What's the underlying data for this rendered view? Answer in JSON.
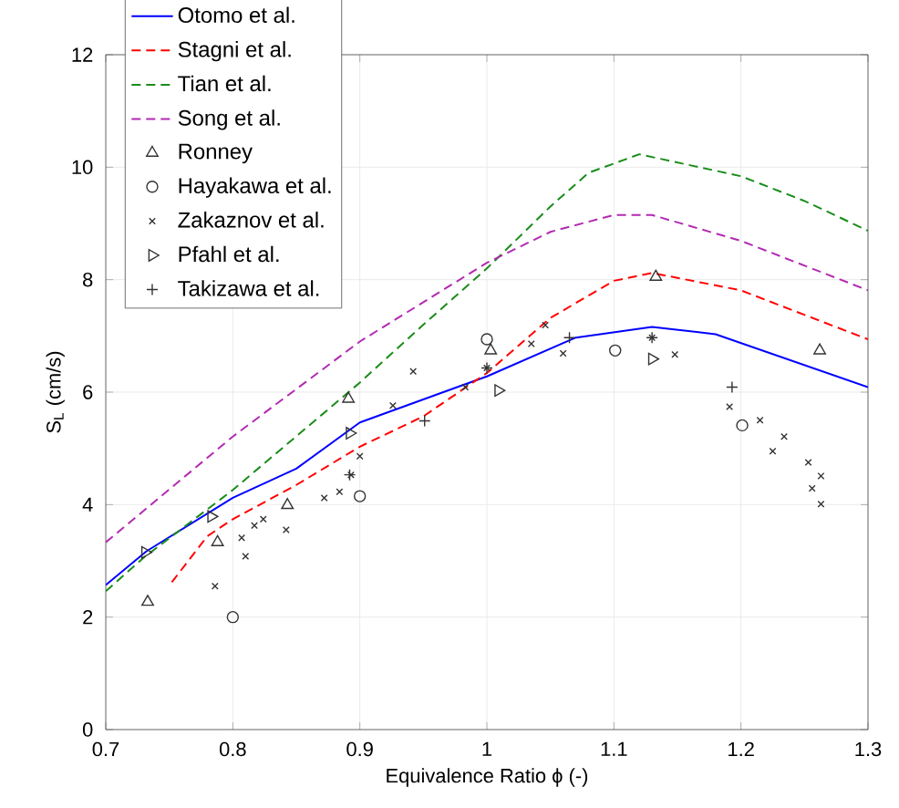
{
  "chart_data": {
    "type": "line",
    "xlabel": "Equivalence Ratio ϕ (-)",
    "ylabel": "S$_{L}$ (cm/s)",
    "xlim": [
      0.7,
      1.3
    ],
    "ylim": [
      0,
      12
    ],
    "xticks": [
      0.7,
      0.8,
      0.9,
      1,
      1.1,
      1.2,
      1.3
    ],
    "yticks": [
      0,
      2,
      4,
      6,
      8,
      10,
      12
    ],
    "grid": true,
    "legend": "top left",
    "series": [
      {
        "name": "Otomo et al.",
        "line_style": "solid",
        "color": "#0000ff",
        "x": [
          0.7,
          0.732,
          0.8,
          0.85,
          0.9,
          1.0,
          1.07,
          1.13,
          1.18,
          1.3
        ],
        "values": [
          2.57,
          3.17,
          4.12,
          4.64,
          5.46,
          6.28,
          6.97,
          7.16,
          7.03,
          6.09
        ]
      },
      {
        "name": "Stagni et al.",
        "line_style": "dashed",
        "color": "#ff0000",
        "x": [
          0.752,
          0.78,
          0.8,
          0.85,
          0.9,
          0.95,
          1.0,
          1.05,
          1.1,
          1.13,
          1.2,
          1.3
        ],
        "values": [
          2.62,
          3.44,
          3.74,
          4.35,
          5.03,
          5.57,
          6.34,
          7.32,
          7.98,
          8.12,
          7.81,
          6.94
        ]
      },
      {
        "name": "Tian et al.",
        "line_style": "dashed",
        "color": "#1a8c1a",
        "x": [
          0.7,
          0.73,
          0.8,
          0.9,
          0.95,
          1.0,
          1.05,
          1.08,
          1.12,
          1.2,
          1.25,
          1.3
        ],
        "values": [
          2.46,
          3.06,
          4.26,
          6.17,
          7.2,
          8.2,
          9.3,
          9.9,
          10.23,
          9.84,
          9.4,
          8.87
        ]
      },
      {
        "name": "Song et al.",
        "line_style": "dashed",
        "color": "#b22ab2",
        "x": [
          0.7,
          0.8,
          0.9,
          0.95,
          1.0,
          1.05,
          1.1,
          1.13,
          1.2,
          1.3
        ],
        "values": [
          3.33,
          5.21,
          6.9,
          7.6,
          8.3,
          8.85,
          9.15,
          9.15,
          8.69,
          7.81
        ]
      },
      {
        "name": "Ronney",
        "type": "scatter",
        "marker": "triangle",
        "color": "#333333",
        "x": [
          0.733,
          0.788,
          0.843,
          0.891,
          1.003,
          1.133,
          1.262
        ],
        "values": [
          2.27,
          3.33,
          3.99,
          5.88,
          6.74,
          8.05,
          6.74
        ]
      },
      {
        "name": "Hayakawa et al.",
        "type": "scatter",
        "marker": "circle",
        "color": "#333333",
        "x": [
          0.8,
          0.9,
          1.0,
          1.101,
          1.201
        ],
        "values": [
          2.0,
          4.15,
          6.94,
          6.74,
          5.41
        ]
      },
      {
        "name": "Zakaznov et al.",
        "type": "scatter",
        "marker": "cross",
        "color": "#333333",
        "x": [
          0.786,
          0.81,
          0.807,
          0.817,
          0.824,
          0.842,
          0.872,
          0.884,
          0.893,
          0.9,
          0.926,
          0.942,
          0.983,
          1.0,
          1.035,
          1.046,
          1.06,
          1.13,
          1.148,
          1.191,
          1.215,
          1.225,
          1.234,
          1.253,
          1.263,
          1.256,
          1.263
        ],
        "values": [
          2.55,
          3.08,
          3.41,
          3.63,
          3.74,
          3.55,
          4.12,
          4.23,
          4.53,
          4.86,
          5.76,
          6.37,
          6.09,
          6.43,
          6.86,
          7.19,
          6.69,
          6.97,
          6.67,
          5.74,
          5.5,
          4.95,
          5.21,
          4.75,
          4.51,
          4.29,
          4.01
        ]
      },
      {
        "name": "Pfahl et al.",
        "type": "scatter",
        "marker": "triangle-right",
        "color": "#333333",
        "x": [
          0.731,
          0.783,
          0.892,
          1.009,
          1.13
        ],
        "values": [
          3.15,
          3.79,
          5.27,
          6.03,
          6.59
        ]
      },
      {
        "name": "Takizawa et al.",
        "type": "scatter",
        "marker": "plus",
        "color": "#333333",
        "x": [
          0.892,
          0.951,
          1.0,
          1.065,
          1.13,
          1.193
        ],
        "values": [
          4.53,
          5.49,
          6.43,
          6.97,
          6.97,
          6.09
        ]
      }
    ]
  }
}
